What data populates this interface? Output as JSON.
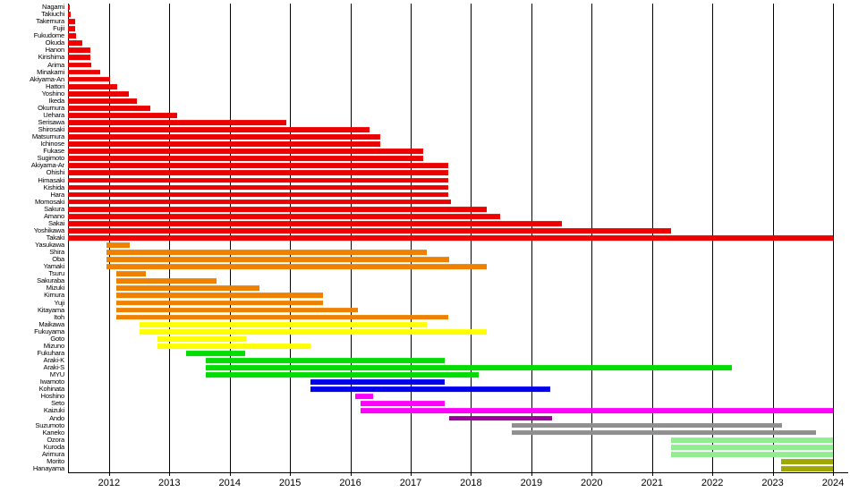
{
  "chart_data": {
    "type": "bar",
    "orientation": "horizontal-span",
    "title": "",
    "xlabel": "",
    "ylabel": "",
    "grid": "vertical-yearly",
    "legend": "none",
    "x_ticks": [
      2012,
      2013,
      2014,
      2015,
      2016,
      2017,
      2018,
      2019,
      2020,
      2021,
      2022,
      2023,
      2024
    ],
    "xlim": [
      2011.32,
      2024.25
    ],
    "xlim_bars_max": 2024.0,
    "colors": {
      "red": "#ee0000",
      "orange": "#ef8100",
      "yellow": "#ffff00",
      "green": "#00dd00",
      "blue": "#0000ee",
      "magenta": "#ff00ff",
      "purple": "#990099",
      "gray": "#8f8f8f",
      "lightgreen": "#90ee90",
      "olive": "#9fa800"
    },
    "rows": [
      {
        "name": "Nagami",
        "group": "red",
        "start": 2011.32,
        "end": 2011.35
      },
      {
        "name": "Takiuchi",
        "group": "red",
        "start": 2011.32,
        "end": 2011.37
      },
      {
        "name": "Takemura",
        "group": "red",
        "start": 2011.32,
        "end": 2011.44
      },
      {
        "name": "Fujii",
        "group": "red",
        "start": 2011.32,
        "end": 2011.44
      },
      {
        "name": "Fukudome",
        "group": "red",
        "start": 2011.32,
        "end": 2011.46
      },
      {
        "name": "Okuda",
        "group": "red",
        "start": 2011.32,
        "end": 2011.55
      },
      {
        "name": "Hanon",
        "group": "red",
        "start": 2011.32,
        "end": 2011.69
      },
      {
        "name": "Kirishima",
        "group": "red",
        "start": 2011.32,
        "end": 2011.69
      },
      {
        "name": "Arima",
        "group": "red",
        "start": 2011.32,
        "end": 2011.71
      },
      {
        "name": "Minakami",
        "group": "red",
        "start": 2011.32,
        "end": 2011.85
      },
      {
        "name": "Akiyama-An",
        "group": "red",
        "start": 2011.32,
        "end": 2012.01
      },
      {
        "name": "Hattori",
        "group": "red",
        "start": 2011.32,
        "end": 2012.13
      },
      {
        "name": "Yoshino",
        "group": "red",
        "start": 2011.32,
        "end": 2012.33
      },
      {
        "name": "Ikeda",
        "group": "red",
        "start": 2011.32,
        "end": 2012.46
      },
      {
        "name": "Okumura",
        "group": "red",
        "start": 2011.32,
        "end": 2012.68
      },
      {
        "name": "Uehara",
        "group": "red",
        "start": 2011.32,
        "end": 2013.13
      },
      {
        "name": "Serisawa",
        "group": "red",
        "start": 2011.32,
        "end": 2014.94
      },
      {
        "name": "Shirosaki",
        "group": "red",
        "start": 2011.32,
        "end": 2016.32
      },
      {
        "name": "Matsumura",
        "group": "red",
        "start": 2011.32,
        "end": 2016.49
      },
      {
        "name": "Ichinose",
        "group": "red",
        "start": 2011.32,
        "end": 2016.49
      },
      {
        "name": "Fukase",
        "group": "red",
        "start": 2011.32,
        "end": 2017.21
      },
      {
        "name": "Sugimoto",
        "group": "red",
        "start": 2011.32,
        "end": 2017.21
      },
      {
        "name": "Akiyama-Ar",
        "group": "red",
        "start": 2011.32,
        "end": 2017.63
      },
      {
        "name": "Ohishi",
        "group": "red",
        "start": 2011.32,
        "end": 2017.63
      },
      {
        "name": "Himasaki",
        "group": "red",
        "start": 2011.32,
        "end": 2017.63
      },
      {
        "name": "Kishida",
        "group": "red",
        "start": 2011.32,
        "end": 2017.63
      },
      {
        "name": "Hara",
        "group": "red",
        "start": 2011.32,
        "end": 2017.63
      },
      {
        "name": "Momosaki",
        "group": "red",
        "start": 2011.32,
        "end": 2017.66
      },
      {
        "name": "Sakura",
        "group": "red",
        "start": 2011.32,
        "end": 2018.26
      },
      {
        "name": "Amano",
        "group": "red",
        "start": 2011.32,
        "end": 2018.49
      },
      {
        "name": "Sakai",
        "group": "red",
        "start": 2011.32,
        "end": 2019.5
      },
      {
        "name": "Yoshikawa",
        "group": "red",
        "start": 2011.32,
        "end": 2021.31
      },
      {
        "name": "Takaki",
        "group": "red",
        "start": 2011.32,
        "end": 2024.0
      },
      {
        "name": "Yasukawa",
        "group": "orange",
        "start": 2011.96,
        "end": 2012.34
      },
      {
        "name": "Shira",
        "group": "orange",
        "start": 2011.96,
        "end": 2017.26
      },
      {
        "name": "Oba",
        "group": "orange",
        "start": 2011.96,
        "end": 2017.64
      },
      {
        "name": "Yamaki",
        "group": "orange",
        "start": 2011.96,
        "end": 2018.26
      },
      {
        "name": "Tsuru",
        "group": "orange",
        "start": 2012.12,
        "end": 2012.61
      },
      {
        "name": "Sakuraba",
        "group": "orange",
        "start": 2012.12,
        "end": 2013.78
      },
      {
        "name": "Mizuki",
        "group": "orange",
        "start": 2012.12,
        "end": 2014.5
      },
      {
        "name": "Kimura",
        "group": "orange",
        "start": 2012.12,
        "end": 2015.54
      },
      {
        "name": "Yuji",
        "group": "orange",
        "start": 2012.12,
        "end": 2015.54
      },
      {
        "name": "Kitayama",
        "group": "orange",
        "start": 2012.12,
        "end": 2016.13
      },
      {
        "name": "Itoh",
        "group": "orange",
        "start": 2012.12,
        "end": 2017.63
      },
      {
        "name": "Maikawa",
        "group": "yellow",
        "start": 2012.51,
        "end": 2017.26
      },
      {
        "name": "Fukuyama",
        "group": "yellow",
        "start": 2012.51,
        "end": 2018.26
      },
      {
        "name": "Goto",
        "group": "yellow",
        "start": 2012.8,
        "end": 2014.27
      },
      {
        "name": "Mizuno",
        "group": "yellow",
        "start": 2012.8,
        "end": 2015.34
      },
      {
        "name": "Fukuhara",
        "group": "green",
        "start": 2013.28,
        "end": 2014.26
      },
      {
        "name": "Araki-K",
        "group": "green",
        "start": 2013.6,
        "end": 2017.57
      },
      {
        "name": "Araki-S",
        "group": "green",
        "start": 2013.6,
        "end": 2022.32
      },
      {
        "name": "MYU",
        "group": "green",
        "start": 2013.6,
        "end": 2018.13
      },
      {
        "name": "Iwamoto",
        "group": "blue",
        "start": 2015.34,
        "end": 2017.57
      },
      {
        "name": "Kohinata",
        "group": "blue",
        "start": 2015.34,
        "end": 2019.32
      },
      {
        "name": "Hoshino",
        "group": "magenta",
        "start": 2016.08,
        "end": 2016.37
      },
      {
        "name": "Seto",
        "group": "magenta",
        "start": 2016.17,
        "end": 2017.57
      },
      {
        "name": "Kaizuki",
        "group": "magenta",
        "start": 2016.17,
        "end": 2024.0
      },
      {
        "name": "Ando",
        "group": "purple",
        "start": 2017.64,
        "end": 2019.35
      },
      {
        "name": "Suzumoto",
        "group": "gray",
        "start": 2018.67,
        "end": 2023.16
      },
      {
        "name": "Kaneko",
        "group": "gray",
        "start": 2018.67,
        "end": 2023.72
      },
      {
        "name": "Ozora",
        "group": "lightgreen",
        "start": 2021.31,
        "end": 2024.0
      },
      {
        "name": "Kuroda",
        "group": "lightgreen",
        "start": 2021.31,
        "end": 2024.0
      },
      {
        "name": "Arimura",
        "group": "lightgreen",
        "start": 2021.31,
        "end": 2024.0
      },
      {
        "name": "Morito",
        "group": "olive",
        "start": 2023.14,
        "end": 2024.0
      },
      {
        "name": "Hanayama",
        "group": "olive",
        "start": 2023.14,
        "end": 2024.0
      }
    ]
  }
}
